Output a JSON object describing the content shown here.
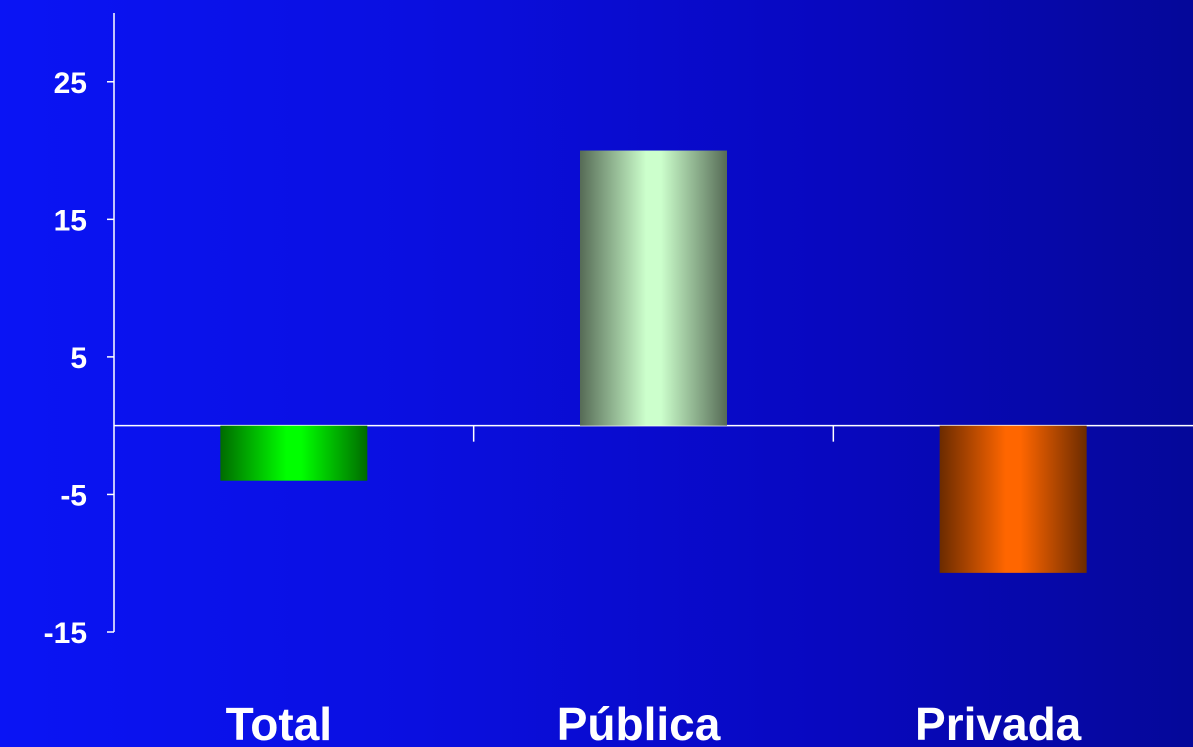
{
  "chart_data": {
    "type": "bar",
    "categories": [
      "Total",
      "Pública",
      "Privada"
    ],
    "values": [
      -4,
      20,
      -10.7
    ],
    "colors": [
      "#00ff00",
      "#ccffcc",
      "#ff6600"
    ],
    "y_ticks": [
      25,
      15,
      5,
      -5,
      -15
    ],
    "ylim": [
      -15,
      30
    ],
    "grid": false,
    "legend": "none"
  }
}
